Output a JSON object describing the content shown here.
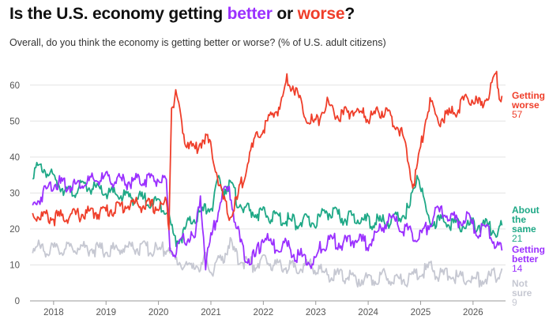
{
  "title": {
    "prefix": "Is the U.S. economy getting ",
    "better": "better",
    "middle": " or ",
    "worse": "worse",
    "suffix": "?"
  },
  "subtitle": "Overall, do you think the economy is getting better or worse? (% of U.S. adult citizens)",
  "chart_data": {
    "type": "line",
    "title": "Is the U.S. economy getting better or worse?",
    "subtitle": "Overall, do you think the economy is getting better or worse? (% of U.S. adult citizens)",
    "xlim": [
      2017.55,
      2026.62
    ],
    "ylim": [
      0,
      65
    ],
    "x_ticks": [
      2018,
      2019,
      2020,
      2021,
      2022,
      2023,
      2024,
      2025,
      2026
    ],
    "x_tick_labels": [
      "2018",
      "2019",
      "2020",
      "2021",
      "2022",
      "2023",
      "2024",
      "2025",
      "2026"
    ],
    "y_ticks": [
      0,
      10,
      20,
      30,
      40,
      50,
      60
    ],
    "y_tick_labels": [
      "0",
      "10",
      "20",
      "30",
      "40",
      "50",
      "60"
    ],
    "grid": "horizontal",
    "legend": "inline-right",
    "series": [
      {
        "name": "Getting worse",
        "label_lines": [
          "Getting",
          "worse"
        ],
        "latest": "57",
        "color": "#ef3e2a",
        "x": [
          2017.6,
          2018.0,
          2018.5,
          2019.0,
          2019.5,
          2020.0,
          2020.15,
          2020.2,
          2020.25,
          2020.35,
          2020.5,
          2020.7,
          2020.9,
          2021.05,
          2021.2,
          2021.35,
          2021.5,
          2021.7,
          2021.9,
          2022.0,
          2022.2,
          2022.35,
          2022.45,
          2022.6,
          2022.8,
          2023.0,
          2023.2,
          2023.45,
          2023.7,
          2024.0,
          2024.3,
          2024.6,
          2024.75,
          2024.85,
          2024.92,
          2025.0,
          2025.1,
          2025.2,
          2025.3,
          2025.45,
          2025.6,
          2025.8,
          2026.0,
          2026.15,
          2026.3,
          2026.4,
          2026.45,
          2026.5,
          2026.55
        ],
        "y": [
          24,
          23,
          24,
          25,
          27,
          26,
          27,
          22,
          55,
          57,
          45,
          42,
          46,
          40,
          30,
          23,
          28,
          39,
          46,
          48,
          52,
          55,
          62,
          59,
          52,
          49,
          55,
          51,
          53,
          51,
          53,
          48,
          40,
          32,
          36,
          42,
          52,
          55,
          50,
          51,
          52,
          55,
          56,
          54,
          58,
          62,
          63,
          58,
          57
        ]
      },
      {
        "name": "About the same",
        "label_lines": [
          "About",
          "the",
          "same"
        ],
        "latest": "21",
        "color": "#1ea886",
        "x": [
          2017.6,
          2017.8,
          2018.0,
          2018.3,
          2018.6,
          2019.0,
          2019.4,
          2019.8,
          2020.0,
          2020.15,
          2020.22,
          2020.3,
          2020.45,
          2020.6,
          2020.8,
          2020.95,
          2021.05,
          2021.15,
          2021.25,
          2021.35,
          2021.5,
          2021.7,
          2022.0,
          2022.3,
          2022.6,
          2023.0,
          2023.2,
          2023.5,
          2023.8,
          2024.0,
          2024.3,
          2024.6,
          2024.8,
          2024.88,
          2024.95,
          2025.05,
          2025.15,
          2025.3,
          2025.5,
          2025.8,
          2026.0,
          2026.2,
          2026.4,
          2026.5,
          2026.55
        ],
        "y": [
          36,
          37,
          34,
          30,
          32,
          30,
          29,
          28,
          27,
          26,
          22,
          17,
          18,
          22,
          24,
          26,
          27,
          34,
          31,
          33,
          28,
          25,
          24,
          23,
          22,
          22,
          25,
          23,
          23,
          22,
          22,
          23,
          26,
          33,
          36,
          28,
          23,
          22,
          22,
          21,
          21,
          21,
          20,
          19,
          21
        ]
      },
      {
        "name": "Getting better",
        "label_lines": [
          "Getting",
          "better"
        ],
        "latest": "14",
        "color": "#9b30ff",
        "x": [
          2017.6,
          2017.8,
          2018.0,
          2018.3,
          2018.6,
          2019.0,
          2019.4,
          2019.8,
          2020.0,
          2020.1,
          2020.15,
          2020.22,
          2020.28,
          2020.4,
          2020.55,
          2020.7,
          2020.8,
          2020.9,
          2021.0,
          2021.2,
          2021.35,
          2021.5,
          2021.6,
          2021.7,
          2021.85,
          2022.0,
          2022.2,
          2022.4,
          2022.6,
          2022.8,
          2022.95,
          2023.1,
          2023.3,
          2023.5,
          2023.8,
          2024.0,
          2024.2,
          2024.4,
          2024.6,
          2024.8,
          2024.95,
          2025.1,
          2025.3,
          2025.5,
          2025.7,
          2025.9,
          2026.1,
          2026.3,
          2026.45,
          2026.55
        ],
        "y": [
          26,
          30,
          33,
          32,
          33,
          34,
          33,
          34,
          34,
          33,
          32,
          15,
          13,
          15,
          18,
          17,
          30,
          10,
          17,
          29,
          31,
          20,
          14,
          12,
          12,
          18,
          15,
          16,
          13,
          12,
          10,
          15,
          17,
          16,
          17,
          16,
          19,
          23,
          21,
          19,
          17,
          20,
          25,
          24,
          22,
          23,
          19,
          20,
          15,
          14
        ]
      },
      {
        "name": "Not sure",
        "label_lines": [
          "Not",
          "sure"
        ],
        "latest": "9",
        "color": "#c6c8d2",
        "x": [
          2017.6,
          2018.0,
          2018.5,
          2019.0,
          2019.5,
          2020.0,
          2020.2,
          2020.25,
          2020.4,
          2020.55,
          2020.7,
          2020.8,
          2020.9,
          2021.0,
          2021.1,
          2021.2,
          2021.35,
          2021.5,
          2021.8,
          2022.0,
          2022.3,
          2022.6,
          2022.9,
          2023.1,
          2023.3,
          2023.5,
          2023.8,
          2024.0,
          2024.3,
          2024.6,
          2024.8,
          2025.0,
          2025.2,
          2025.4,
          2025.6,
          2025.8,
          2026.0,
          2026.2,
          2026.4,
          2026.5,
          2026.55
        ],
        "y": [
          15,
          14,
          15,
          14,
          15,
          14,
          15,
          12,
          11,
          9,
          11,
          8,
          12,
          8,
          10,
          11,
          16,
          12,
          10,
          11,
          10,
          9,
          10,
          8,
          7,
          7,
          6,
          6,
          7,
          6,
          6,
          8,
          9,
          7,
          7,
          6,
          6,
          6,
          7,
          8,
          9
        ]
      }
    ]
  }
}
